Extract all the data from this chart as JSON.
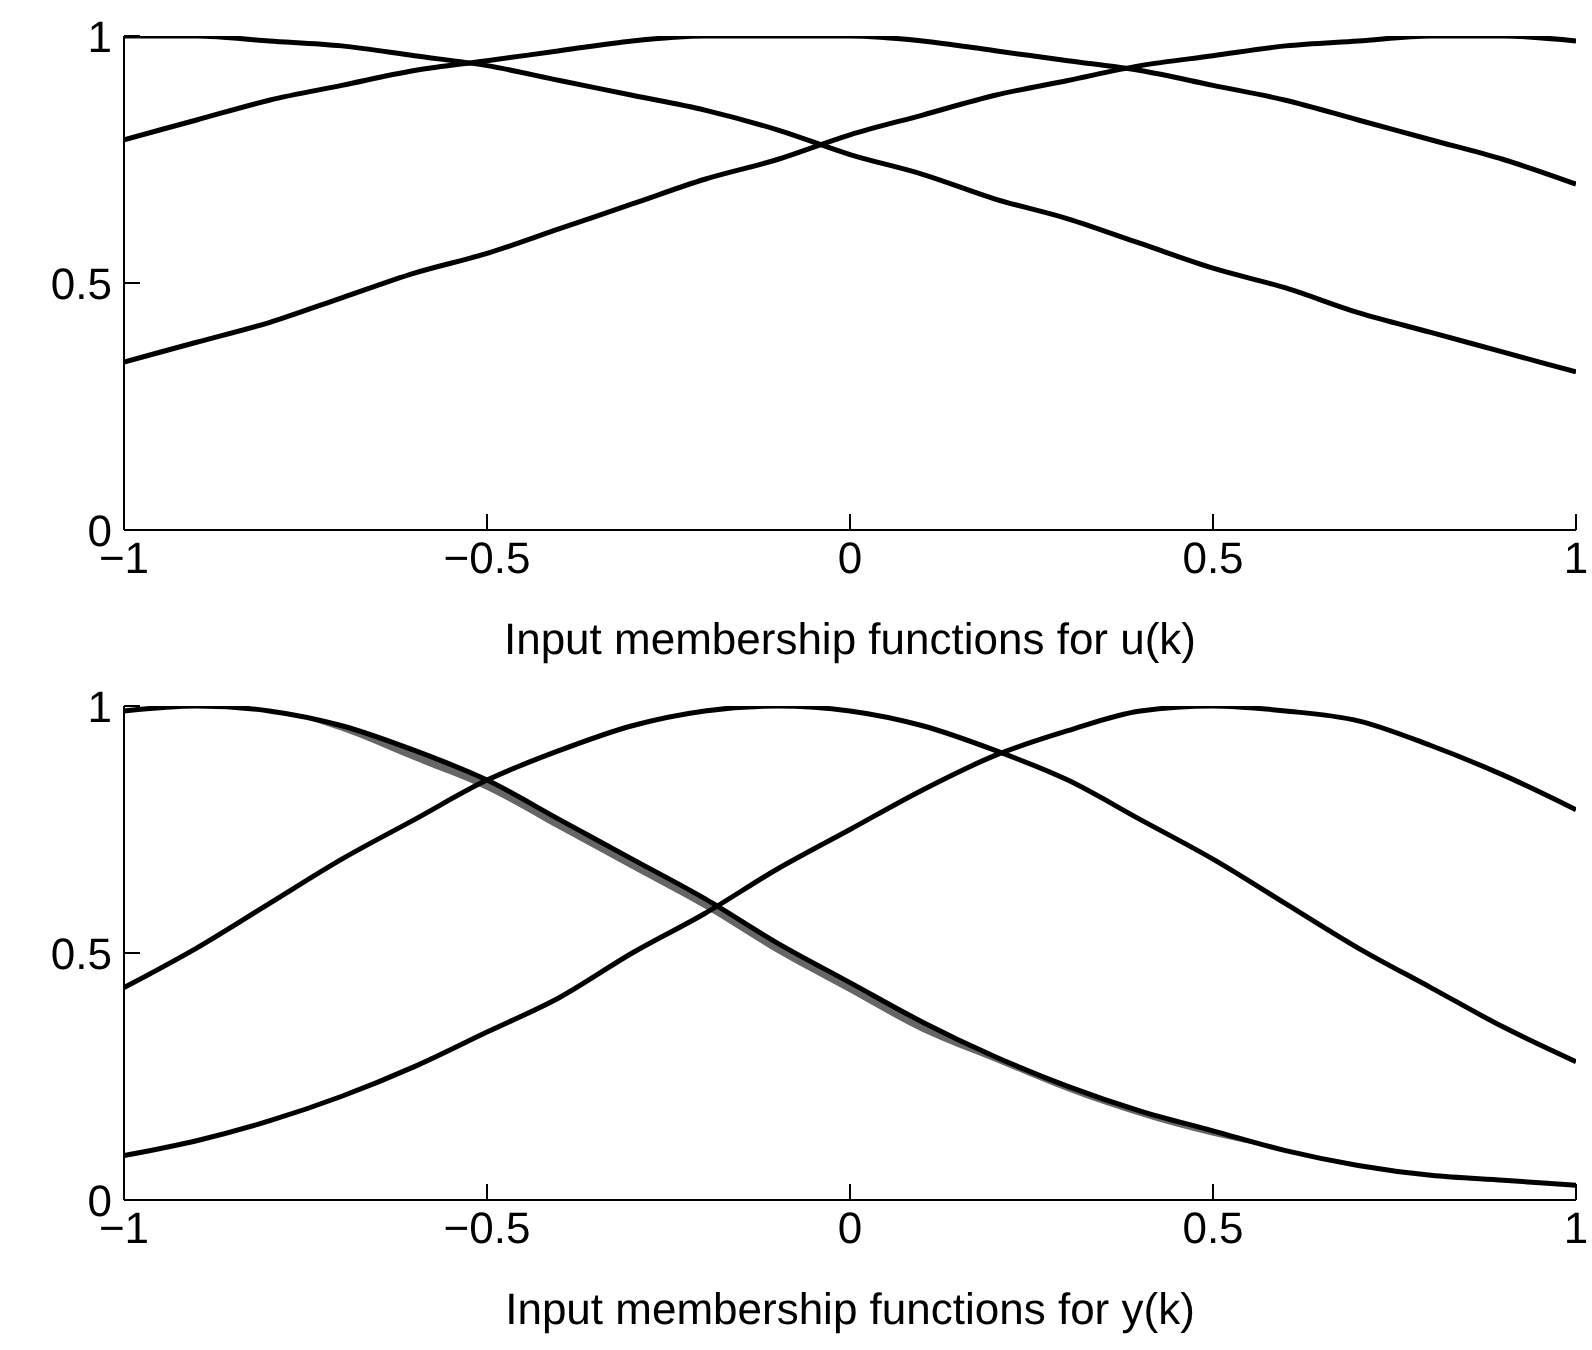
{
  "chart_data": [
    {
      "type": "line",
      "xlabel": "Input membership functions for u(k)",
      "marker": "none",
      "xlim": [
        -1,
        1
      ],
      "ylim": [
        0,
        1
      ],
      "xticks": [
        -1,
        -0.5,
        0,
        0.5,
        1
      ],
      "yticks": [
        0,
        0.5,
        1
      ],
      "x": [
        -1,
        -0.9,
        -0.8,
        -0.7,
        -0.6,
        -0.5,
        -0.4,
        -0.3,
        -0.2,
        -0.1,
        0,
        0.1,
        0.2,
        0.3,
        0.4,
        0.5,
        0.6,
        0.7,
        0.8,
        0.9,
        1
      ],
      "series": [
        {
          "color": "#000000",
          "values": [
            1,
            1,
            0.99,
            0.98,
            0.96,
            0.94,
            0.91,
            0.88,
            0.85,
            0.81,
            0.76,
            0.72,
            0.67,
            0.63,
            0.58,
            0.53,
            0.49,
            0.44,
            0.4,
            0.36,
            0.32
          ]
        },
        {
          "color": "#000000",
          "values": [
            0.79,
            0.83,
            0.87,
            0.9,
            0.93,
            0.95,
            0.97,
            0.99,
            1,
            1,
            1,
            0.99,
            0.97,
            0.95,
            0.93,
            0.9,
            0.87,
            0.83,
            0.79,
            0.75,
            0.7
          ]
        },
        {
          "color": "#000000",
          "values": [
            0.34,
            0.38,
            0.42,
            0.47,
            0.52,
            0.56,
            0.61,
            0.66,
            0.71,
            0.75,
            0.8,
            0.84,
            0.88,
            0.91,
            0.94,
            0.96,
            0.98,
            0.99,
            1,
            1,
            0.99
          ]
        }
      ]
    },
    {
      "type": "line",
      "xlabel": "Input membership functions for y(k)",
      "marker": "none",
      "xlim": [
        -1,
        1
      ],
      "ylim": [
        0,
        1
      ],
      "xticks": [
        -1,
        -0.5,
        0,
        0.5,
        1
      ],
      "yticks": [
        0,
        0.5,
        1
      ],
      "x": [
        -1,
        -0.9,
        -0.8,
        -0.7,
        -0.6,
        -0.5,
        -0.4,
        -0.3,
        -0.2,
        -0.1,
        0,
        0.1,
        0.2,
        0.3,
        0.4,
        0.5,
        0.6,
        0.7,
        0.8,
        0.9,
        1
      ],
      "series": [
        {
          "color": "#000000",
          "values": [
            0.99,
            1,
            0.99,
            0.96,
            0.91,
            0.85,
            0.77,
            0.69,
            0.61,
            0.52,
            0.44,
            0.36,
            0.29,
            0.23,
            0.18,
            0.14,
            0.1,
            0.07,
            0.05,
            0.04,
            0.03
          ],
          "lower": [
            0.99,
            1,
            0.99,
            0.95,
            0.89,
            0.83,
            0.75,
            0.67,
            0.59,
            0.5,
            0.42,
            0.34,
            0.28,
            0.22,
            0.17,
            0.13,
            0.1,
            0.07,
            0.05,
            0.04,
            0.03
          ],
          "upper": [
            0.99,
            1,
            0.99,
            0.96,
            0.91,
            0.85,
            0.77,
            0.69,
            0.61,
            0.52,
            0.44,
            0.36,
            0.29,
            0.23,
            0.18,
            0.14,
            0.1,
            0.07,
            0.05,
            0.04,
            0.03
          ]
        },
        {
          "color": "#000000",
          "values": [
            0.43,
            0.51,
            0.6,
            0.69,
            0.77,
            0.85,
            0.91,
            0.96,
            0.99,
            1,
            0.99,
            0.96,
            0.91,
            0.85,
            0.77,
            0.69,
            0.6,
            0.51,
            0.43,
            0.35,
            0.28
          ]
        },
        {
          "color": "#000000",
          "values": [
            0.09,
            0.12,
            0.16,
            0.21,
            0.27,
            0.34,
            0.41,
            0.5,
            0.58,
            0.67,
            0.75,
            0.83,
            0.9,
            0.95,
            0.99,
            1,
            0.99,
            0.97,
            0.92,
            0.86,
            0.79
          ]
        }
      ]
    }
  ]
}
